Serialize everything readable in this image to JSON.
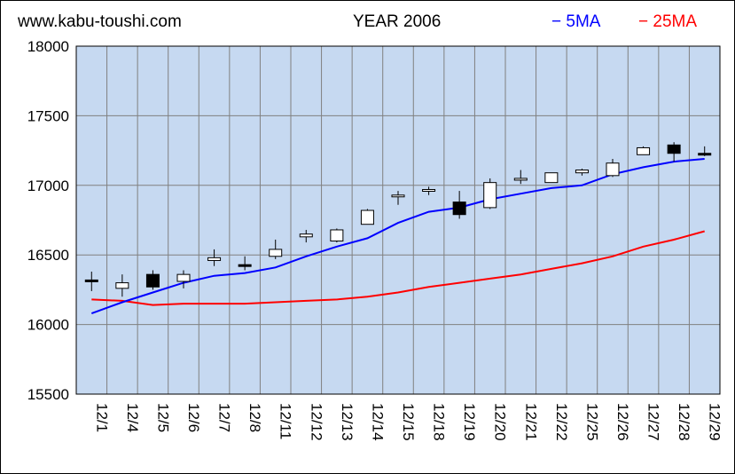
{
  "header": {
    "site": "www.kabu-toushi.com",
    "title": "YEAR 2006",
    "legend_5ma": "− 5MA",
    "legend_25ma": "− 25MA"
  },
  "colors": {
    "plot_bg": "#c6d9f1",
    "grid": "#808080",
    "ma5": "#0000ff",
    "ma25": "#ff0000",
    "up_candle": "#ffffff",
    "down_candle": "#000000"
  },
  "chart_data": {
    "type": "candlestick",
    "title": "YEAR 2006",
    "ylim": [
      15500,
      18000
    ],
    "yticks": [
      15500,
      16000,
      16500,
      17000,
      17500,
      18000
    ],
    "grid": true,
    "legend_position": "top-right",
    "categories": [
      "12/1",
      "12/4",
      "12/5",
      "12/6",
      "12/7",
      "12/8",
      "12/11",
      "12/12",
      "12/13",
      "12/14",
      "12/15",
      "12/18",
      "12/19",
      "12/20",
      "12/21",
      "12/22",
      "12/25",
      "12/26",
      "12/27",
      "12/28",
      "12/29"
    ],
    "ohlc": [
      {
        "date": "12/1",
        "open": 16320,
        "high": 16380,
        "low": 16240,
        "close": 16310
      },
      {
        "date": "12/4",
        "open": 16260,
        "high": 16360,
        "low": 16200,
        "close": 16300
      },
      {
        "date": "12/5",
        "open": 16360,
        "high": 16390,
        "low": 16250,
        "close": 16270
      },
      {
        "date": "12/6",
        "open": 16310,
        "high": 16390,
        "low": 16260,
        "close": 16360
      },
      {
        "date": "12/7",
        "open": 16460,
        "high": 16540,
        "low": 16420,
        "close": 16480
      },
      {
        "date": "12/8",
        "open": 16430,
        "high": 16490,
        "low": 16390,
        "close": 16420
      },
      {
        "date": "12/11",
        "open": 16490,
        "high": 16610,
        "low": 16470,
        "close": 16540
      },
      {
        "date": "12/12",
        "open": 16630,
        "high": 16680,
        "low": 16590,
        "close": 16650
      },
      {
        "date": "12/13",
        "open": 16600,
        "high": 16690,
        "low": 16590,
        "close": 16680
      },
      {
        "date": "12/14",
        "open": 16720,
        "high": 16830,
        "low": 16720,
        "close": 16820
      },
      {
        "date": "12/15",
        "open": 16920,
        "high": 16960,
        "low": 16860,
        "close": 16930
      },
      {
        "date": "12/18",
        "open": 16960,
        "high": 16990,
        "low": 16930,
        "close": 16970
      },
      {
        "date": "12/19",
        "open": 16880,
        "high": 16960,
        "low": 16760,
        "close": 16790
      },
      {
        "date": "12/20",
        "open": 16840,
        "high": 17050,
        "low": 16830,
        "close": 17020
      },
      {
        "date": "12/21",
        "open": 17040,
        "high": 17110,
        "low": 17010,
        "close": 17050
      },
      {
        "date": "12/22",
        "open": 17020,
        "high": 17090,
        "low": 17020,
        "close": 17090
      },
      {
        "date": "12/25",
        "open": 17090,
        "high": 17120,
        "low": 17070,
        "close": 17110
      },
      {
        "date": "12/26",
        "open": 17070,
        "high": 17190,
        "low": 17060,
        "close": 17160
      },
      {
        "date": "12/27",
        "open": 17220,
        "high": 17280,
        "low": 17220,
        "close": 17270
      },
      {
        "date": "12/28",
        "open": 17290,
        "high": 17310,
        "low": 17170,
        "close": 17230
      },
      {
        "date": "12/29",
        "open": 17230,
        "high": 17280,
        "low": 17210,
        "close": 17220
      }
    ],
    "series": [
      {
        "name": "5MA",
        "values": [
          16080,
          16160,
          16230,
          16300,
          16350,
          16370,
          16410,
          16490,
          16560,
          16620,
          16730,
          16810,
          16840,
          16900,
          16940,
          16980,
          17000,
          17080,
          17130,
          17170,
          17190
        ]
      },
      {
        "name": "25MA",
        "values": [
          16180,
          16170,
          16140,
          16150,
          16150,
          16150,
          16160,
          16170,
          16180,
          16200,
          16230,
          16270,
          16300,
          16330,
          16360,
          16400,
          16440,
          16490,
          16560,
          16610,
          16670
        ]
      }
    ]
  }
}
